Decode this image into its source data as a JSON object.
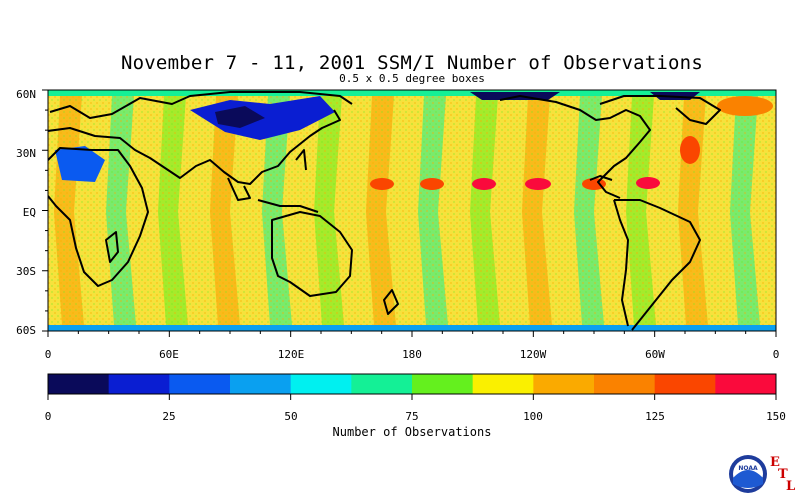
{
  "title": "November 7 - 11, 2001 SSM/I Number of Observations",
  "subtitle": "0.5 x 0.5 degree boxes",
  "lat_labels": [
    "60N",
    "30N",
    "EQ",
    "30S",
    "60S"
  ],
  "lon_labels": [
    "0",
    "60E",
    "120E",
    "180",
    "120W",
    "60W",
    "0"
  ],
  "colorbar": {
    "colors": [
      "#0a0a5a",
      "#0a1ed2",
      "#0a5af0",
      "#0aa0f0",
      "#00f0f0",
      "#14f096",
      "#64f01e",
      "#faf000",
      "#faaa00",
      "#fa8200",
      "#fa4600",
      "#fa0a3c"
    ],
    "tick_labels": [
      "0",
      "25",
      "50",
      "75",
      "100",
      "125",
      "150"
    ],
    "label": "Number of Observations",
    "range": [
      0,
      150
    ]
  },
  "logo": {
    "agency": "NOAA",
    "letters": [
      "E",
      "T",
      "L"
    ]
  }
}
